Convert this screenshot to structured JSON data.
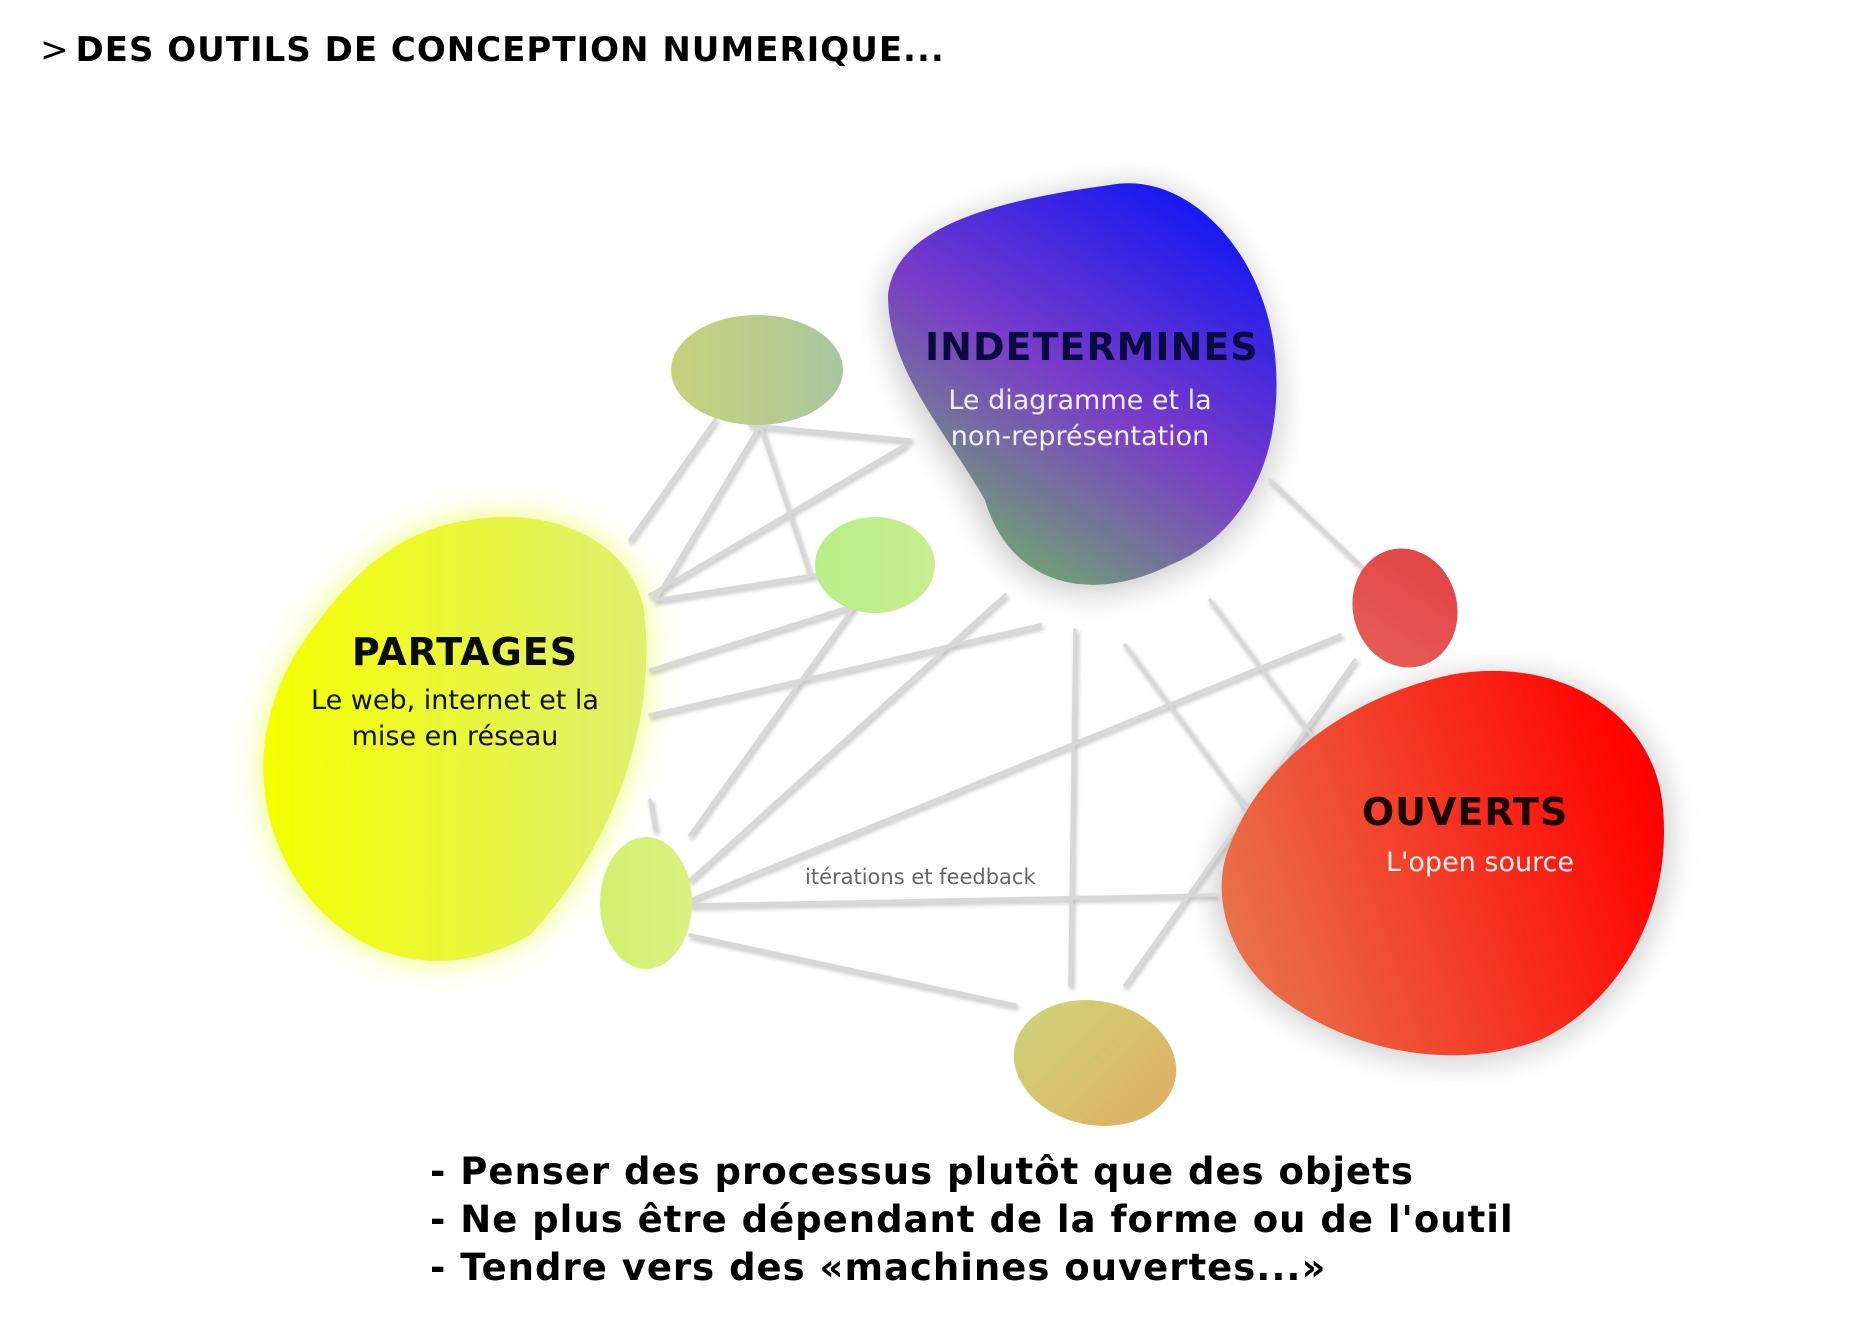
{
  "title": {
    "prefix": ">",
    "text": "DES OUTILS DE CONCEPTION NUMERIQUE..."
  },
  "nodes": {
    "indetermines": {
      "title": "INDETERMINES",
      "subtitle_line1": "Le diagramme et la",
      "subtitle_line2": "non-représentation"
    },
    "partages": {
      "title": "PARTAGES",
      "subtitle_line1": "Le web, internet et la",
      "subtitle_line2": "mise en réseau"
    },
    "ouverts": {
      "title": "OUVERTS",
      "subtitle_line1": "L'open source"
    }
  },
  "edge_label": "itérations et feedback",
  "bullets": [
    "- Penser des processus plutôt que des objets",
    "- Ne plus être dépendant de la forme ou de l'outil",
    "- Tendre vers des «machines ouvertes...»"
  ],
  "colors": {
    "indetermines": [
      "#1a1af0",
      "#7a3cc8",
      "#6fae6a"
    ],
    "partages": [
      "#f4ff00",
      "#dff070"
    ],
    "ouverts": [
      "#ff0000",
      "#e8744c"
    ],
    "small_nodes": [
      "#c8d27a",
      "#b8ee88",
      "#e04a4a",
      "#d4f070",
      "#d9b86a"
    ],
    "edge": "#d8d8d8"
  }
}
